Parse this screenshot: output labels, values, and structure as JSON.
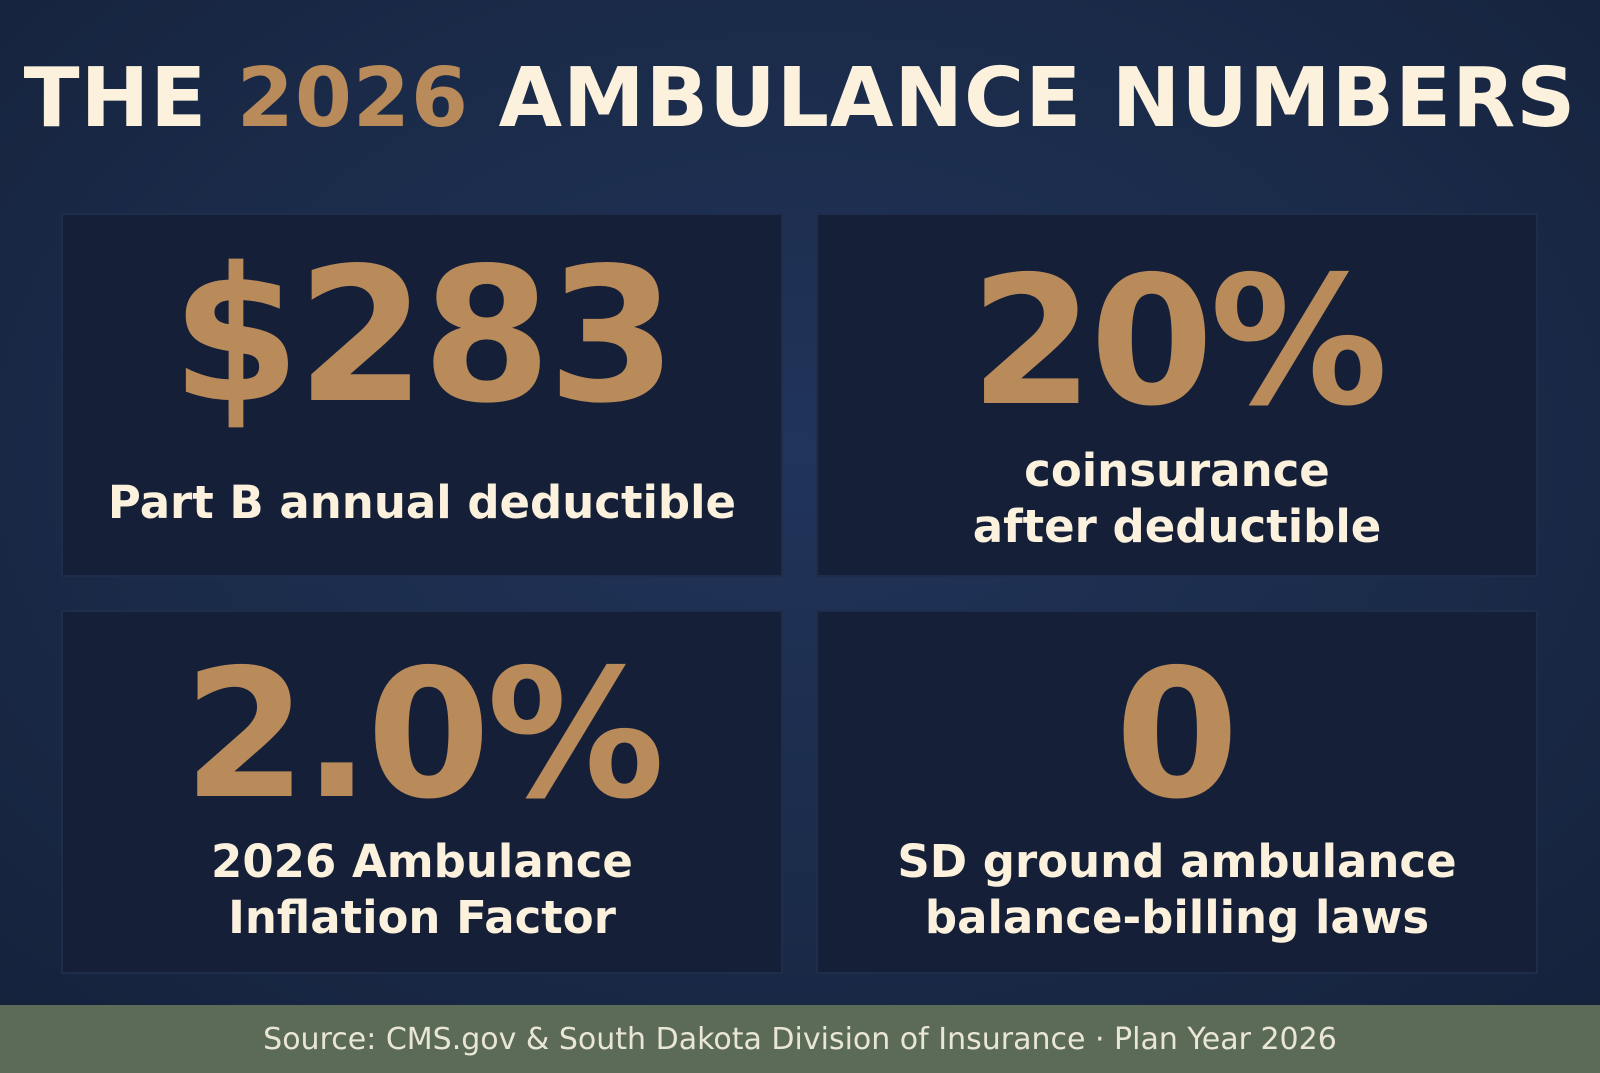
{
  "title": {
    "prefix": "THE ",
    "year": "2026",
    "suffix": " AMBULANCE NUMBERS"
  },
  "stats": [
    {
      "value": "$283",
      "label": "Part B annual deductible"
    },
    {
      "value": "20%",
      "label": "coinsurance after deductible"
    },
    {
      "value": "2.0%",
      "label": "2026 Ambulance Inflation Factor"
    },
    {
      "value": "0",
      "label": "SD ground ambulance balance-billing laws"
    }
  ],
  "footer": {
    "source": "Source: CMS.gov & South Dakota Division of Insurance · Plan Year 2026"
  },
  "colors": {
    "background": "#1b2a47",
    "card": "#152038",
    "accent": "#b98a5a",
    "text": "#fbf1dc",
    "footer": "#5c6a58"
  }
}
